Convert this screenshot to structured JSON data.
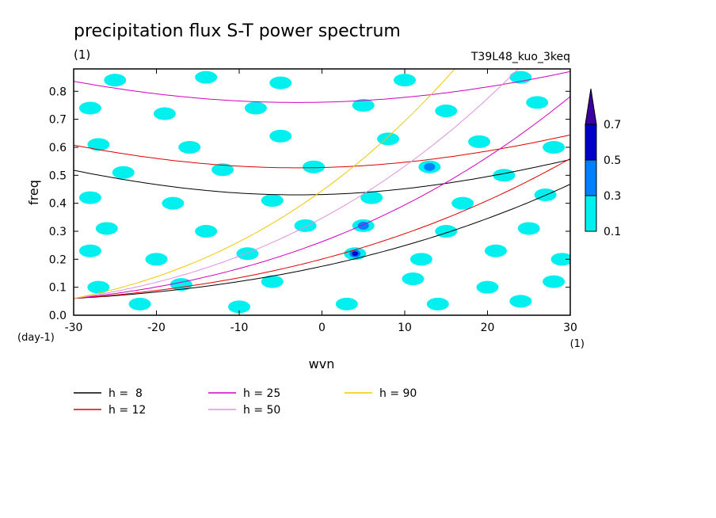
{
  "chart_data": {
    "type": "heatmap",
    "title": "precipitation flux S-T power spectrum",
    "title_unit": "(1)",
    "subtitle": "T39L48_kuo_3keq",
    "xlabel": "wvn",
    "ylabel": "freq",
    "x_unit": "(1)",
    "y_unit": "(day-1)",
    "xlim": [
      -30,
      30
    ],
    "ylim": [
      0.0,
      0.88
    ],
    "xticks": [
      -30,
      -20,
      -10,
      0,
      10,
      20,
      30
    ],
    "yticks": [
      0.0,
      0.1,
      0.2,
      0.3,
      0.4,
      0.5,
      0.6,
      0.7,
      0.8
    ],
    "grid": false,
    "colorbar": {
      "levels": [
        0.1,
        0.3,
        0.5,
        0.7
      ],
      "colors": [
        "#00f0f0",
        "#0080ff",
        "#0000c8",
        "#3c00a0"
      ],
      "position": "right"
    },
    "contour_patches": [
      {
        "x": -25.0,
        "y": 0.84,
        "level": 0.1
      },
      {
        "x": -14.0,
        "y": 0.85,
        "level": 0.1
      },
      {
        "x": -5.0,
        "y": 0.83,
        "level": 0.1
      },
      {
        "x": 10.0,
        "y": 0.84,
        "level": 0.1
      },
      {
        "x": 24.0,
        "y": 0.85,
        "level": 0.1
      },
      {
        "x": -28.0,
        "y": 0.74,
        "level": 0.1
      },
      {
        "x": -19.0,
        "y": 0.72,
        "level": 0.1
      },
      {
        "x": -8.0,
        "y": 0.74,
        "level": 0.1
      },
      {
        "x": 5.0,
        "y": 0.75,
        "level": 0.1
      },
      {
        "x": 15.0,
        "y": 0.73,
        "level": 0.1
      },
      {
        "x": 26.0,
        "y": 0.76,
        "level": 0.1
      },
      {
        "x": -27.0,
        "y": 0.61,
        "level": 0.1
      },
      {
        "x": -16.0,
        "y": 0.6,
        "level": 0.1
      },
      {
        "x": -5.0,
        "y": 0.64,
        "level": 0.1
      },
      {
        "x": 8.0,
        "y": 0.63,
        "level": 0.1
      },
      {
        "x": 19.0,
        "y": 0.62,
        "level": 0.1
      },
      {
        "x": 28.0,
        "y": 0.6,
        "level": 0.1
      },
      {
        "x": -24.0,
        "y": 0.51,
        "level": 0.1
      },
      {
        "x": -12.0,
        "y": 0.52,
        "level": 0.1
      },
      {
        "x": -1.0,
        "y": 0.53,
        "level": 0.1
      },
      {
        "x": 13.0,
        "y": 0.53,
        "level": 0.3
      },
      {
        "x": 22.0,
        "y": 0.5,
        "level": 0.1
      },
      {
        "x": -28.0,
        "y": 0.42,
        "level": 0.1
      },
      {
        "x": -18.0,
        "y": 0.4,
        "level": 0.1
      },
      {
        "x": -6.0,
        "y": 0.41,
        "level": 0.1
      },
      {
        "x": 6.0,
        "y": 0.42,
        "level": 0.1
      },
      {
        "x": 17.0,
        "y": 0.4,
        "level": 0.1
      },
      {
        "x": 27.0,
        "y": 0.43,
        "level": 0.1
      },
      {
        "x": -26.0,
        "y": 0.31,
        "level": 0.1
      },
      {
        "x": -14.0,
        "y": 0.3,
        "level": 0.1
      },
      {
        "x": -2.0,
        "y": 0.32,
        "level": 0.1
      },
      {
        "x": 5.0,
        "y": 0.32,
        "level": 0.3
      },
      {
        "x": 15.0,
        "y": 0.3,
        "level": 0.1
      },
      {
        "x": 25.0,
        "y": 0.31,
        "level": 0.1
      },
      {
        "x": -28.0,
        "y": 0.23,
        "level": 0.1
      },
      {
        "x": -20.0,
        "y": 0.2,
        "level": 0.1
      },
      {
        "x": -9.0,
        "y": 0.22,
        "level": 0.1
      },
      {
        "x": 4.0,
        "y": 0.22,
        "level": 0.5
      },
      {
        "x": 12.0,
        "y": 0.2,
        "level": 0.1
      },
      {
        "x": 21.0,
        "y": 0.23,
        "level": 0.1
      },
      {
        "x": 29.0,
        "y": 0.2,
        "level": 0.1
      },
      {
        "x": -27.0,
        "y": 0.1,
        "level": 0.1
      },
      {
        "x": -17.0,
        "y": 0.11,
        "level": 0.1
      },
      {
        "x": -6.0,
        "y": 0.12,
        "level": 0.1
      },
      {
        "x": 11.0,
        "y": 0.13,
        "level": 0.1
      },
      {
        "x": 20.0,
        "y": 0.1,
        "level": 0.1
      },
      {
        "x": 28.0,
        "y": 0.12,
        "level": 0.1
      },
      {
        "x": -22.0,
        "y": 0.04,
        "level": 0.1
      },
      {
        "x": -10.0,
        "y": 0.03,
        "level": 0.1
      },
      {
        "x": 3.0,
        "y": 0.04,
        "level": 0.1
      },
      {
        "x": 14.0,
        "y": 0.04,
        "level": 0.1
      },
      {
        "x": 24.0,
        "y": 0.05,
        "level": 0.1
      }
    ],
    "dispersion_curves": [
      {
        "name": "h =  8",
        "h": 8,
        "color": "#000000"
      },
      {
        "name": "h = 12",
        "h": 12,
        "color": "#e00000"
      },
      {
        "name": "h = 25",
        "h": 25,
        "color": "#d000c0"
      },
      {
        "name": "h = 50",
        "h": 50,
        "color": "#e090e0"
      },
      {
        "name": "h = 90",
        "h": 90,
        "color": "#f0c800"
      }
    ]
  }
}
